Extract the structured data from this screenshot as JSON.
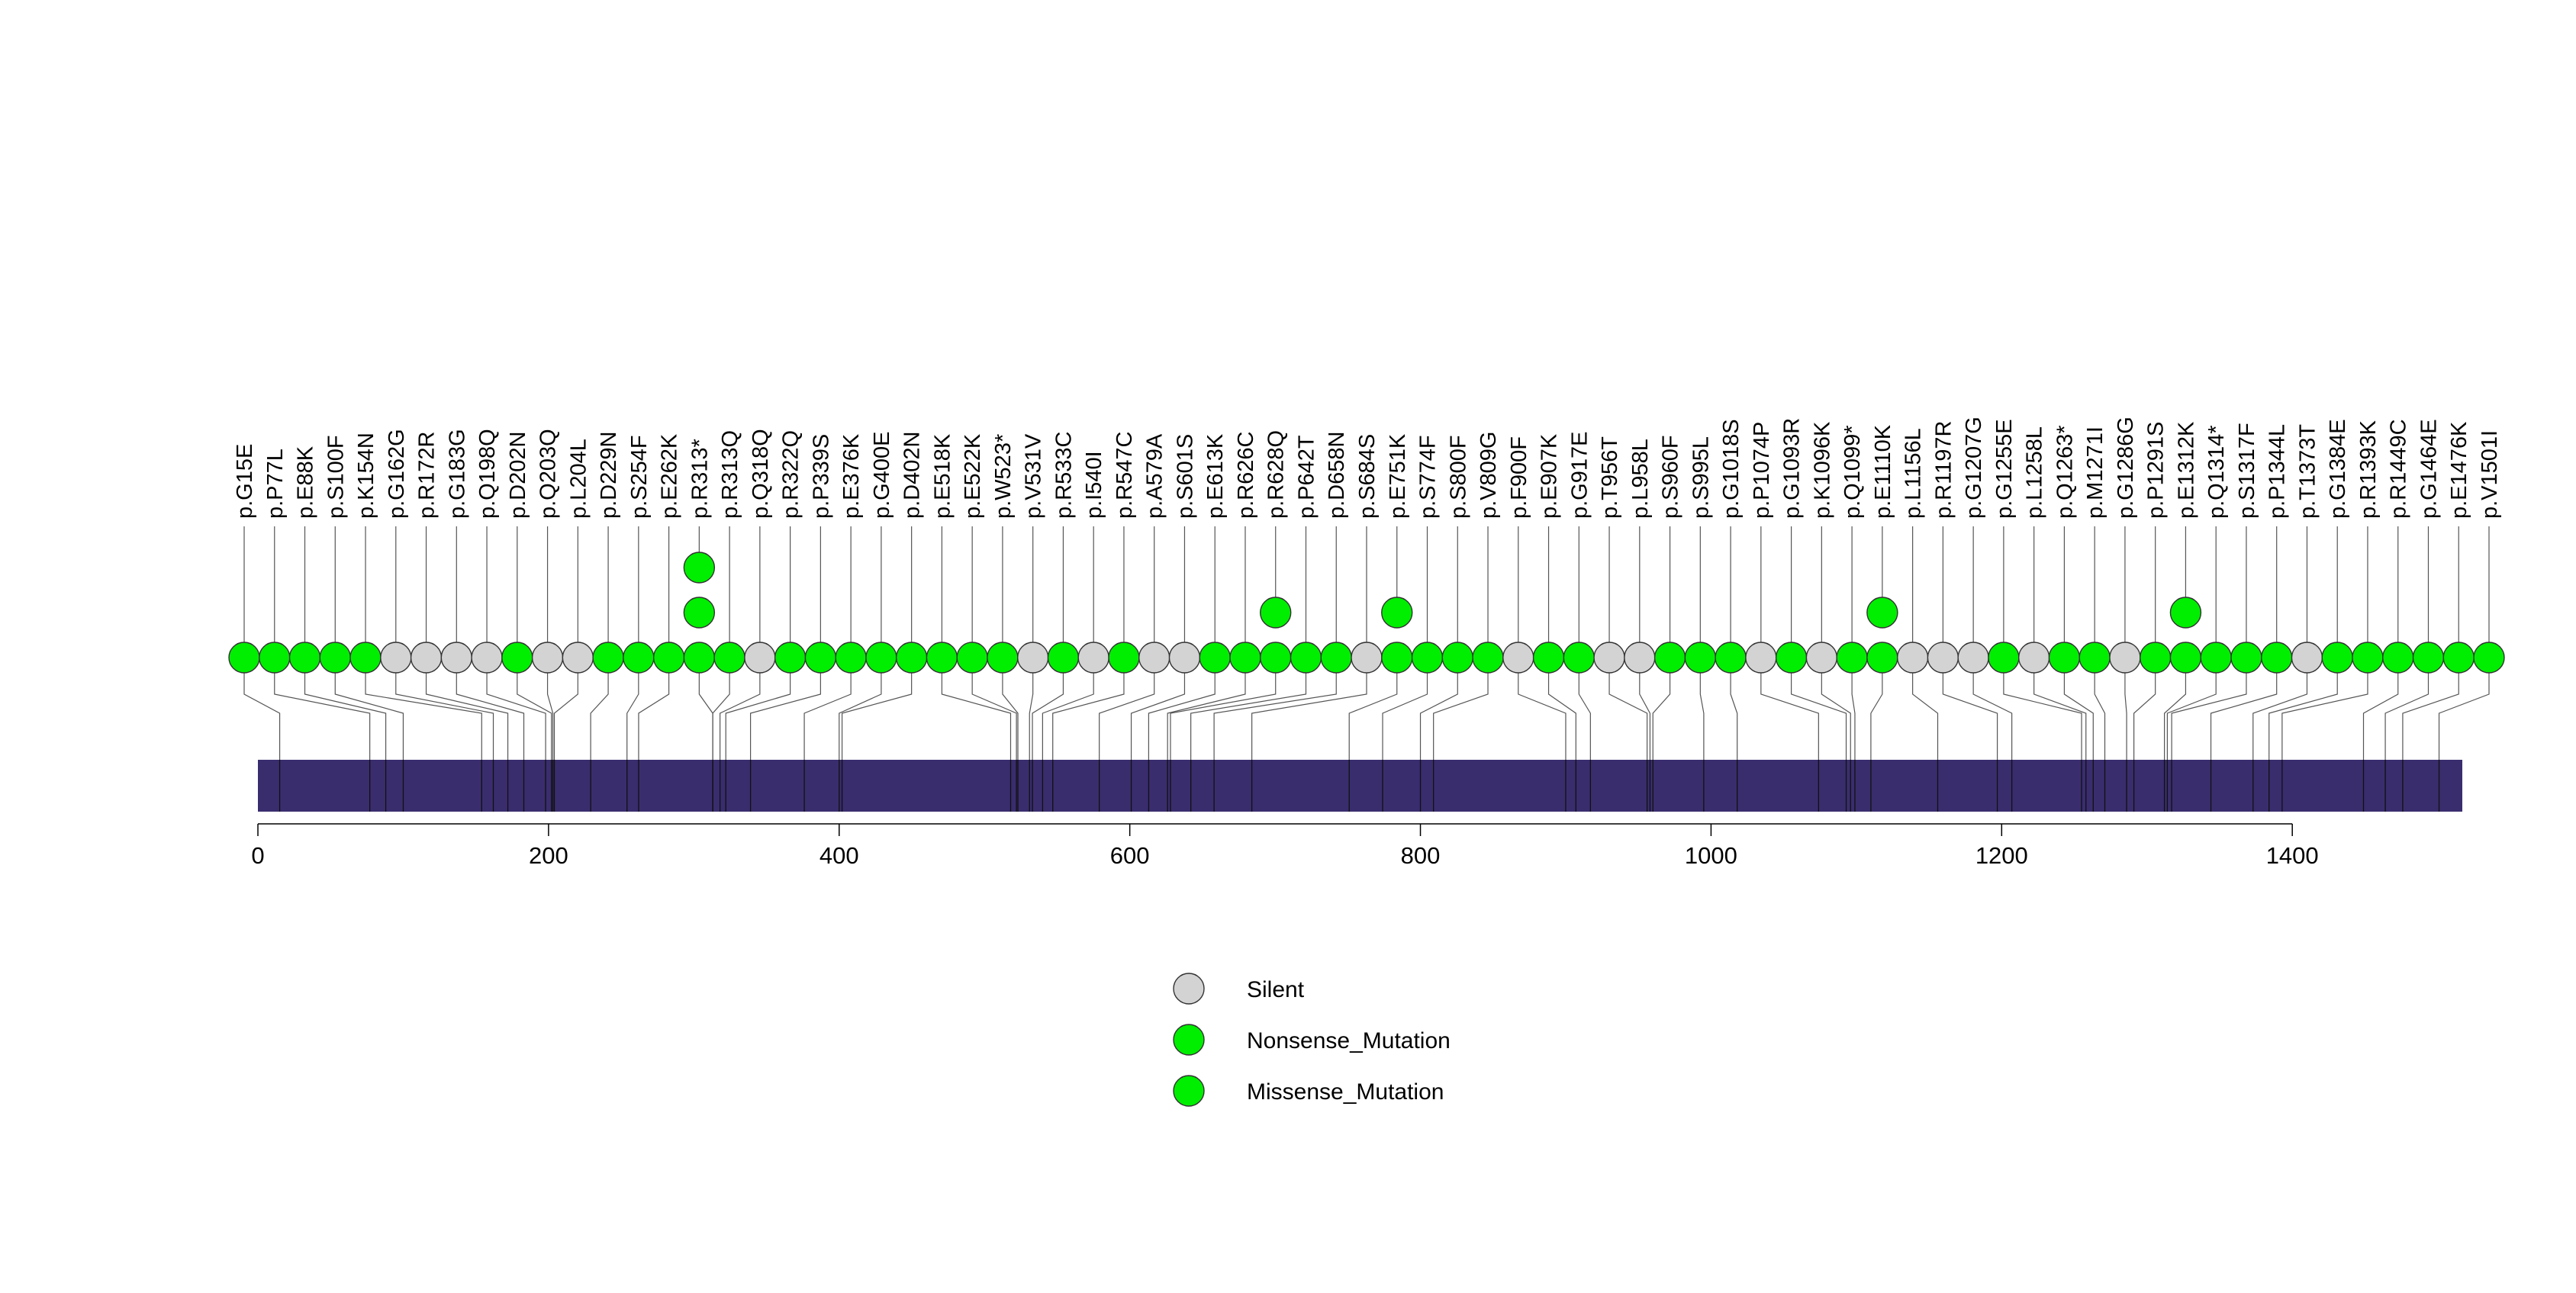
{
  "chart_data": {
    "type": "lollipop",
    "title": "",
    "xlabel": "",
    "ylabel": "",
    "xlim": [
      0,
      1517
    ],
    "x_ticks": [
      0,
      200,
      400,
      600,
      800,
      1000,
      1200,
      1400
    ],
    "protein_length": 1517,
    "colors": {
      "silent": "#d3d3d3",
      "nonsense": "#00ee00",
      "missense": "#00ee00",
      "bar": "#3a2d6e",
      "stroke": "#333333"
    },
    "legend": [
      {
        "label": "Silent",
        "type": "silent"
      },
      {
        "label": "Nonsense_Mutation",
        "type": "nonsense"
      },
      {
        "label": "Missense_Mutation",
        "type": "missense"
      }
    ],
    "mutations": [
      {
        "label": "p.G15E",
        "pos": 15,
        "type": "missense",
        "count": 1
      },
      {
        "label": "p.P77L",
        "pos": 77,
        "type": "missense",
        "count": 1
      },
      {
        "label": "p.E88K",
        "pos": 88,
        "type": "missense",
        "count": 1
      },
      {
        "label": "p.S100F",
        "pos": 100,
        "type": "missense",
        "count": 1
      },
      {
        "label": "p.K154N",
        "pos": 154,
        "type": "missense",
        "count": 1
      },
      {
        "label": "p.G162G",
        "pos": 162,
        "type": "silent",
        "count": 1
      },
      {
        "label": "p.R172R",
        "pos": 172,
        "type": "silent",
        "count": 1
      },
      {
        "label": "p.G183G",
        "pos": 183,
        "type": "silent",
        "count": 1
      },
      {
        "label": "p.Q198Q",
        "pos": 198,
        "type": "silent",
        "count": 1
      },
      {
        "label": "p.D202N",
        "pos": 202,
        "type": "missense",
        "count": 1
      },
      {
        "label": "p.Q203Q",
        "pos": 203,
        "type": "silent",
        "count": 1
      },
      {
        "label": "p.L204L",
        "pos": 204,
        "type": "silent",
        "count": 1
      },
      {
        "label": "p.D229N",
        "pos": 229,
        "type": "missense",
        "count": 1
      },
      {
        "label": "p.S254F",
        "pos": 254,
        "type": "missense",
        "count": 1
      },
      {
        "label": "p.E262K",
        "pos": 262,
        "type": "missense",
        "count": 1
      },
      {
        "label": "p.R313*",
        "pos": 313,
        "type": "nonsense",
        "count": 3
      },
      {
        "label": "p.R313Q",
        "pos": 313,
        "type": "missense",
        "count": 1
      },
      {
        "label": "p.Q318Q",
        "pos": 318,
        "type": "silent",
        "count": 1
      },
      {
        "label": "p.R322Q",
        "pos": 322,
        "type": "missense",
        "count": 1
      },
      {
        "label": "p.P339S",
        "pos": 339,
        "type": "missense",
        "count": 1
      },
      {
        "label": "p.E376K",
        "pos": 376,
        "type": "missense",
        "count": 1
      },
      {
        "label": "p.G400E",
        "pos": 400,
        "type": "missense",
        "count": 1
      },
      {
        "label": "p.D402N",
        "pos": 402,
        "type": "missense",
        "count": 1
      },
      {
        "label": "p.E518K",
        "pos": 518,
        "type": "missense",
        "count": 1
      },
      {
        "label": "p.E522K",
        "pos": 522,
        "type": "missense",
        "count": 1
      },
      {
        "label": "p.W523*",
        "pos": 523,
        "type": "nonsense",
        "count": 1
      },
      {
        "label": "p.V531V",
        "pos": 531,
        "type": "silent",
        "count": 1
      },
      {
        "label": "p.R533C",
        "pos": 533,
        "type": "missense",
        "count": 1
      },
      {
        "label": "p.I540I",
        "pos": 540,
        "type": "silent",
        "count": 1
      },
      {
        "label": "p.R547C",
        "pos": 547,
        "type": "missense",
        "count": 1
      },
      {
        "label": "p.A579A",
        "pos": 579,
        "type": "silent",
        "count": 1
      },
      {
        "label": "p.S601S",
        "pos": 601,
        "type": "silent",
        "count": 1
      },
      {
        "label": "p.E613K",
        "pos": 613,
        "type": "missense",
        "count": 1
      },
      {
        "label": "p.R626C",
        "pos": 626,
        "type": "missense",
        "count": 1
      },
      {
        "label": "p.R628Q",
        "pos": 628,
        "type": "missense",
        "count": 2
      },
      {
        "label": "p.P642T",
        "pos": 642,
        "type": "missense",
        "count": 1
      },
      {
        "label": "p.D658N",
        "pos": 658,
        "type": "missense",
        "count": 1
      },
      {
        "label": "p.S684S",
        "pos": 684,
        "type": "silent",
        "count": 1
      },
      {
        "label": "p.E751K",
        "pos": 751,
        "type": "missense",
        "count": 2
      },
      {
        "label": "p.S774F",
        "pos": 774,
        "type": "missense",
        "count": 1
      },
      {
        "label": "p.S800F",
        "pos": 800,
        "type": "missense",
        "count": 1
      },
      {
        "label": "p.V809G",
        "pos": 809,
        "type": "missense",
        "count": 1
      },
      {
        "label": "p.F900F",
        "pos": 900,
        "type": "silent",
        "count": 1
      },
      {
        "label": "p.E907K",
        "pos": 907,
        "type": "missense",
        "count": 1
      },
      {
        "label": "p.G917E",
        "pos": 917,
        "type": "missense",
        "count": 1
      },
      {
        "label": "p.T956T",
        "pos": 956,
        "type": "silent",
        "count": 1
      },
      {
        "label": "p.L958L",
        "pos": 958,
        "type": "silent",
        "count": 1
      },
      {
        "label": "p.S960F",
        "pos": 960,
        "type": "missense",
        "count": 1
      },
      {
        "label": "p.S995L",
        "pos": 995,
        "type": "missense",
        "count": 1
      },
      {
        "label": "p.G1018S",
        "pos": 1018,
        "type": "missense",
        "count": 1
      },
      {
        "label": "p.P1074P",
        "pos": 1074,
        "type": "silent",
        "count": 1
      },
      {
        "label": "p.G1093R",
        "pos": 1093,
        "type": "missense",
        "count": 1
      },
      {
        "label": "p.K1096K",
        "pos": 1096,
        "type": "silent",
        "count": 1
      },
      {
        "label": "p.Q1099*",
        "pos": 1099,
        "type": "nonsense",
        "count": 1
      },
      {
        "label": "p.E1110K",
        "pos": 1110,
        "type": "missense",
        "count": 2
      },
      {
        "label": "p.L1156L",
        "pos": 1156,
        "type": "silent",
        "count": 1
      },
      {
        "label": "p.R1197R",
        "pos": 1197,
        "type": "silent",
        "count": 1
      },
      {
        "label": "p.G1207G",
        "pos": 1207,
        "type": "silent",
        "count": 1
      },
      {
        "label": "p.G1255E",
        "pos": 1255,
        "type": "missense",
        "count": 1
      },
      {
        "label": "p.L1258L",
        "pos": 1258,
        "type": "silent",
        "count": 1
      },
      {
        "label": "p.Q1263*",
        "pos": 1263,
        "type": "nonsense",
        "count": 1
      },
      {
        "label": "p.M1271I",
        "pos": 1271,
        "type": "missense",
        "count": 1
      },
      {
        "label": "p.G1286G",
        "pos": 1286,
        "type": "silent",
        "count": 1
      },
      {
        "label": "p.P1291S",
        "pos": 1291,
        "type": "missense",
        "count": 1
      },
      {
        "label": "p.E1312K",
        "pos": 1312,
        "type": "missense",
        "count": 2
      },
      {
        "label": "p.Q1314*",
        "pos": 1314,
        "type": "nonsense",
        "count": 1
      },
      {
        "label": "p.S1317F",
        "pos": 1317,
        "type": "missense",
        "count": 1
      },
      {
        "label": "p.P1344L",
        "pos": 1344,
        "type": "missense",
        "count": 1
      },
      {
        "label": "p.T1373T",
        "pos": 1373,
        "type": "silent",
        "count": 1
      },
      {
        "label": "p.G1384E",
        "pos": 1384,
        "type": "missense",
        "count": 1
      },
      {
        "label": "p.R1393K",
        "pos": 1393,
        "type": "missense",
        "count": 1
      },
      {
        "label": "p.R1449C",
        "pos": 1449,
        "type": "missense",
        "count": 1
      },
      {
        "label": "p.G1464E",
        "pos": 1464,
        "type": "missense",
        "count": 1
      },
      {
        "label": "p.E1476K",
        "pos": 1476,
        "type": "missense",
        "count": 1
      },
      {
        "label": "p.V1501I",
        "pos": 1501,
        "type": "missense",
        "count": 1
      }
    ]
  }
}
